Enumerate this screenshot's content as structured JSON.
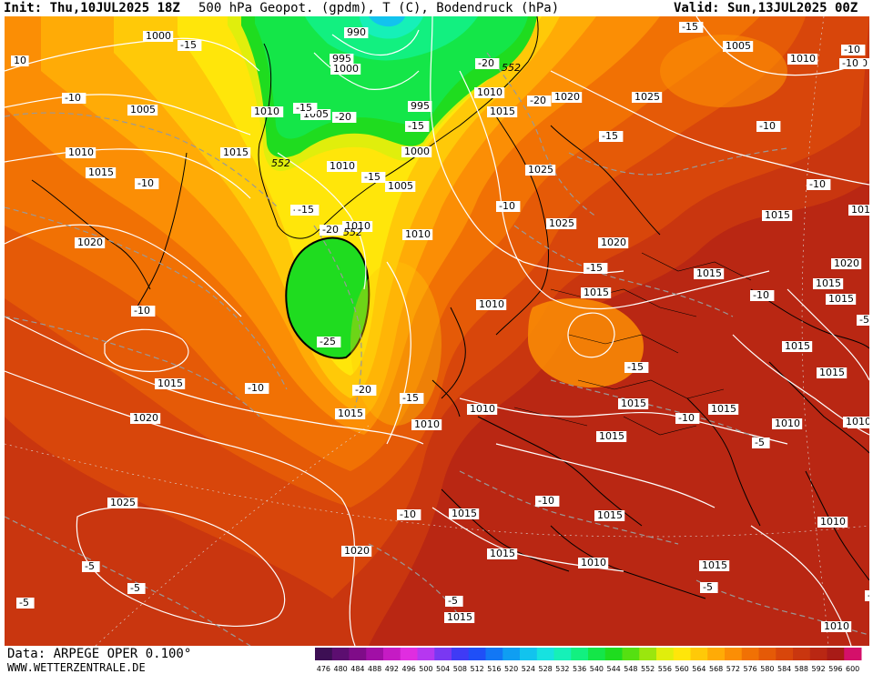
{
  "header": {
    "init": "Init: Thu,10JUL2025 18Z",
    "title": "500 hPa Geopot. (gpdm), T (C), Bodendruck (hPa)",
    "valid": "Valid: Sun,13JUL2025 00Z"
  },
  "footer": {
    "data_source": "Data: ARPEGE OPER 0.100°",
    "website": "WWW.WETTERZENTRALE.DE"
  },
  "legend": {
    "ticks": [
      "476",
      "480",
      "484",
      "488",
      "492",
      "496",
      "500",
      "504",
      "508",
      "512",
      "516",
      "520",
      "524",
      "528",
      "532",
      "536",
      "540",
      "544",
      "548",
      "552",
      "556",
      "560",
      "564",
      "568",
      "572",
      "576",
      "580",
      "584",
      "588",
      "592",
      "596",
      "600"
    ],
    "colors": [
      "#3d0f54",
      "#5c0e70",
      "#7f0c88",
      "#a10fa6",
      "#c51bc4",
      "#e02de0",
      "#b637f0",
      "#7a38f2",
      "#3f3bf5",
      "#1f4ff7",
      "#1277f5",
      "#0f9ef2",
      "#12c3ee",
      "#17e2e0",
      "#16f0b8",
      "#12f080",
      "#14e648",
      "#1fdc1f",
      "#55e011",
      "#9be60e",
      "#e0ee0c",
      "#ffe60a",
      "#ffc908",
      "#ffab06",
      "#fb8e05",
      "#f17104",
      "#e55a07",
      "#d8460b",
      "#c9360f",
      "#b92713",
      "#a81b17",
      "#d4106a"
    ]
  },
  "map_labels": {
    "isobars": [
      {
        "id": "p1",
        "text": "1000"
      },
      {
        "id": "p2",
        "text": "990"
      },
      {
        "id": "p3",
        "text": "995"
      },
      {
        "id": "p4",
        "text": "1000"
      },
      {
        "id": "p5",
        "text": "1005"
      },
      {
        "id": "p6",
        "text": "1010"
      },
      {
        "id": "p7",
        "text": "1005"
      },
      {
        "id": "p8",
        "text": "1010"
      },
      {
        "id": "p9",
        "text": "1015"
      },
      {
        "id": "p10",
        "text": "1010"
      },
      {
        "id": "p11",
        "text": "1015"
      },
      {
        "id": "p12",
        "text": "1010"
      },
      {
        "id": "p13",
        "text": "1005"
      },
      {
        "id": "p14",
        "text": "1000"
      },
      {
        "id": "p15",
        "text": "995"
      },
      {
        "id": "p16",
        "text": "1010"
      },
      {
        "id": "p17",
        "text": "1015"
      },
      {
        "id": "p18",
        "text": "1020"
      },
      {
        "id": "p19",
        "text": "1025"
      },
      {
        "id": "p20",
        "text": "1005"
      },
      {
        "id": "p21",
        "text": "1010"
      },
      {
        "id": "p22",
        "text": "1010"
      },
      {
        "id": "p23",
        "text": "1025"
      },
      {
        "id": "p24",
        "text": "1025"
      },
      {
        "id": "p25",
        "text": "1020"
      },
      {
        "id": "p26",
        "text": "1015"
      },
      {
        "id": "p27",
        "text": "1015"
      },
      {
        "id": "p28",
        "text": "1020"
      },
      {
        "id": "p29",
        "text": "1015"
      },
      {
        "id": "p30",
        "text": "1020"
      },
      {
        "id": "p31",
        "text": "1015"
      },
      {
        "id": "p32",
        "text": "1010"
      },
      {
        "id": "p33",
        "text": "1010"
      },
      {
        "id": "p34",
        "text": "1015"
      },
      {
        "id": "p35",
        "text": "1015"
      },
      {
        "id": "p36",
        "text": "1015"
      },
      {
        "id": "p37",
        "text": "1010"
      },
      {
        "id": "p38",
        "text": "1015"
      },
      {
        "id": "p39",
        "text": "1020"
      },
      {
        "id": "p40",
        "text": "1015"
      },
      {
        "id": "p41",
        "text": "1015"
      },
      {
        "id": "p42",
        "text": "1015"
      },
      {
        "id": "p43",
        "text": "1010"
      },
      {
        "id": "p44",
        "text": "1015"
      },
      {
        "id": "p45",
        "text": "1015"
      },
      {
        "id": "p46",
        "text": "1010"
      },
      {
        "id": "p47",
        "text": "1010"
      },
      {
        "id": "p48",
        "text": "1020"
      },
      {
        "id": "p49",
        "text": "1015"
      },
      {
        "id": "p50",
        "text": "1015"
      },
      {
        "id": "p51",
        "text": "1010"
      },
      {
        "id": "p52",
        "text": "1015"
      },
      {
        "id": "p53",
        "text": "1010"
      },
      {
        "id": "p54",
        "text": "1025"
      },
      {
        "id": "p55",
        "text": "1020"
      },
      {
        "id": "p56",
        "text": "1015"
      },
      {
        "id": "p57",
        "text": "1010"
      },
      {
        "id": "p58",
        "text": "10"
      },
      {
        "id": "p59",
        "text": "1010"
      },
      {
        "id": "p60",
        "text": "1010"
      },
      {
        "id": "p61",
        "text": "1015"
      },
      {
        "id": "p62",
        "text": "1015"
      }
    ],
    "temperatures": [
      {
        "id": "t1",
        "text": "-15"
      },
      {
        "id": "t2",
        "text": "-10"
      },
      {
        "id": "t3",
        "text": "-15"
      },
      {
        "id": "t4",
        "text": "-20"
      },
      {
        "id": "t5",
        "text": "-15"
      },
      {
        "id": "t6",
        "text": "-15"
      },
      {
        "id": "t7",
        "text": "-20"
      },
      {
        "id": "t8",
        "text": "-15"
      },
      {
        "id": "t9",
        "text": "-20"
      },
      {
        "id": "t10",
        "text": "-10"
      },
      {
        "id": "t11",
        "text": "-15"
      },
      {
        "id": "t12",
        "text": "-10"
      },
      {
        "id": "t13",
        "text": "-10"
      },
      {
        "id": "t14",
        "text": "-25"
      },
      {
        "id": "t15",
        "text": "-20"
      },
      {
        "id": "t16",
        "text": "-15"
      },
      {
        "id": "t17",
        "text": "-20"
      },
      {
        "id": "t18",
        "text": "-15"
      },
      {
        "id": "t19",
        "text": "-10"
      },
      {
        "id": "t20",
        "text": "-10"
      },
      {
        "id": "t21",
        "text": "-15"
      },
      {
        "id": "t22",
        "text": "-15"
      },
      {
        "id": "t23",
        "text": "-10"
      },
      {
        "id": "t24",
        "text": "-10"
      },
      {
        "id": "t25",
        "text": "-10"
      },
      {
        "id": "t26",
        "text": "-5"
      },
      {
        "id": "t27",
        "text": "-10"
      },
      {
        "id": "t28",
        "text": "-5"
      },
      {
        "id": "t29",
        "text": "-5"
      },
      {
        "id": "t30",
        "text": "-5"
      },
      {
        "id": "t31",
        "text": "-5"
      },
      {
        "id": "t32",
        "text": "-5"
      },
      {
        "id": "t33",
        "text": "-5"
      },
      {
        "id": "t34",
        "text": "-5"
      },
      {
        "id": "t35",
        "text": "-10"
      },
      {
        "id": "t36",
        "text": "-10"
      },
      {
        "id": "t37",
        "text": "-10"
      },
      {
        "id": "t38",
        "text": "-15"
      }
    ],
    "geopotential": [
      {
        "id": "g1",
        "text": "552"
      },
      {
        "id": "g2",
        "text": "552"
      },
      {
        "id": "g3",
        "text": "552"
      }
    ]
  }
}
